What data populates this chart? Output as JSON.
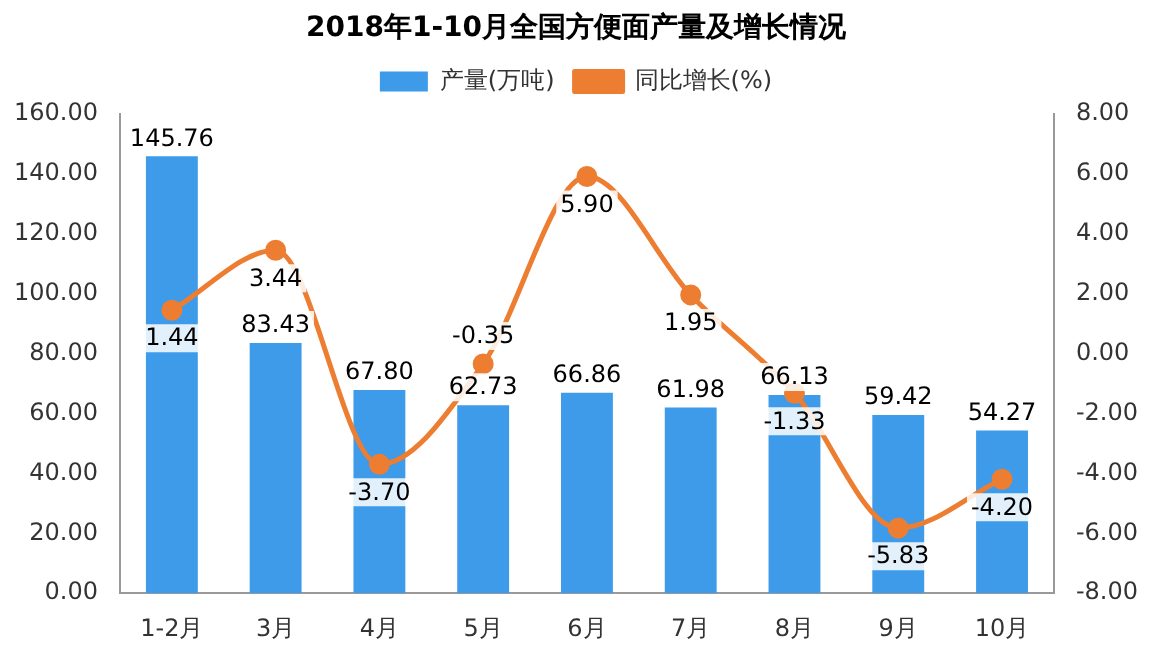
{
  "chart_data": {
    "type": "bar",
    "title": "2018年1-10月全国方便面产量及增长情况",
    "categories": [
      "1-2月",
      "3月",
      "4月",
      "5月",
      "6月",
      "7月",
      "8月",
      "9月",
      "10月"
    ],
    "series": [
      {
        "name": "产量(万吨)",
        "color": "#3d9be9",
        "values": [
          145.76,
          83.43,
          67.8,
          62.73,
          66.86,
          61.98,
          66.13,
          59.42,
          54.27
        ],
        "value_labels": [
          "145.76",
          "83.43",
          "67.80",
          "62.73",
          "66.86",
          "61.98",
          "66.13",
          "59.42",
          "54.27"
        ]
      },
      {
        "name": "同比增长(%)",
        "type": "line",
        "axis": "y2",
        "color": "#ed7d31",
        "marker": "circle",
        "values": [
          1.44,
          3.44,
          -3.7,
          -0.35,
          5.9,
          1.95,
          -1.33,
          -5.83,
          -4.2
        ],
        "value_labels": [
          "1.44",
          "3.44",
          "-3.70",
          "-0.35",
          "5.90",
          "1.95",
          "-1.33",
          "-5.83",
          "-4.20"
        ]
      }
    ],
    "ylim": [
      0,
      160
    ],
    "yticks": [
      {
        "value": 0,
        "label": "0.00"
      },
      {
        "value": 20,
        "label": "20.00"
      },
      {
        "value": 40,
        "label": "40.00"
      },
      {
        "value": 60,
        "label": "60.00"
      },
      {
        "value": 80,
        "label": "80.00"
      },
      {
        "value": 100,
        "label": "100.00"
      },
      {
        "value": 120,
        "label": "120.00"
      },
      {
        "value": 140,
        "label": "140.00"
      },
      {
        "value": 160,
        "label": "160.00"
      }
    ],
    "y2lim": [
      -8,
      8
    ],
    "y2ticks": [
      {
        "value": -8,
        "label": "-8.00"
      },
      {
        "value": -6,
        "label": "-6.00"
      },
      {
        "value": -4,
        "label": "-4.00"
      },
      {
        "value": -2,
        "label": "-2.00"
      },
      {
        "value": 0,
        "label": "0.00"
      },
      {
        "value": 2,
        "label": "2.00"
      },
      {
        "value": 4,
        "label": "4.00"
      },
      {
        "value": 6,
        "label": "6.00"
      },
      {
        "value": 8,
        "label": "8.00"
      }
    ],
    "grid": false,
    "legend": "top"
  }
}
